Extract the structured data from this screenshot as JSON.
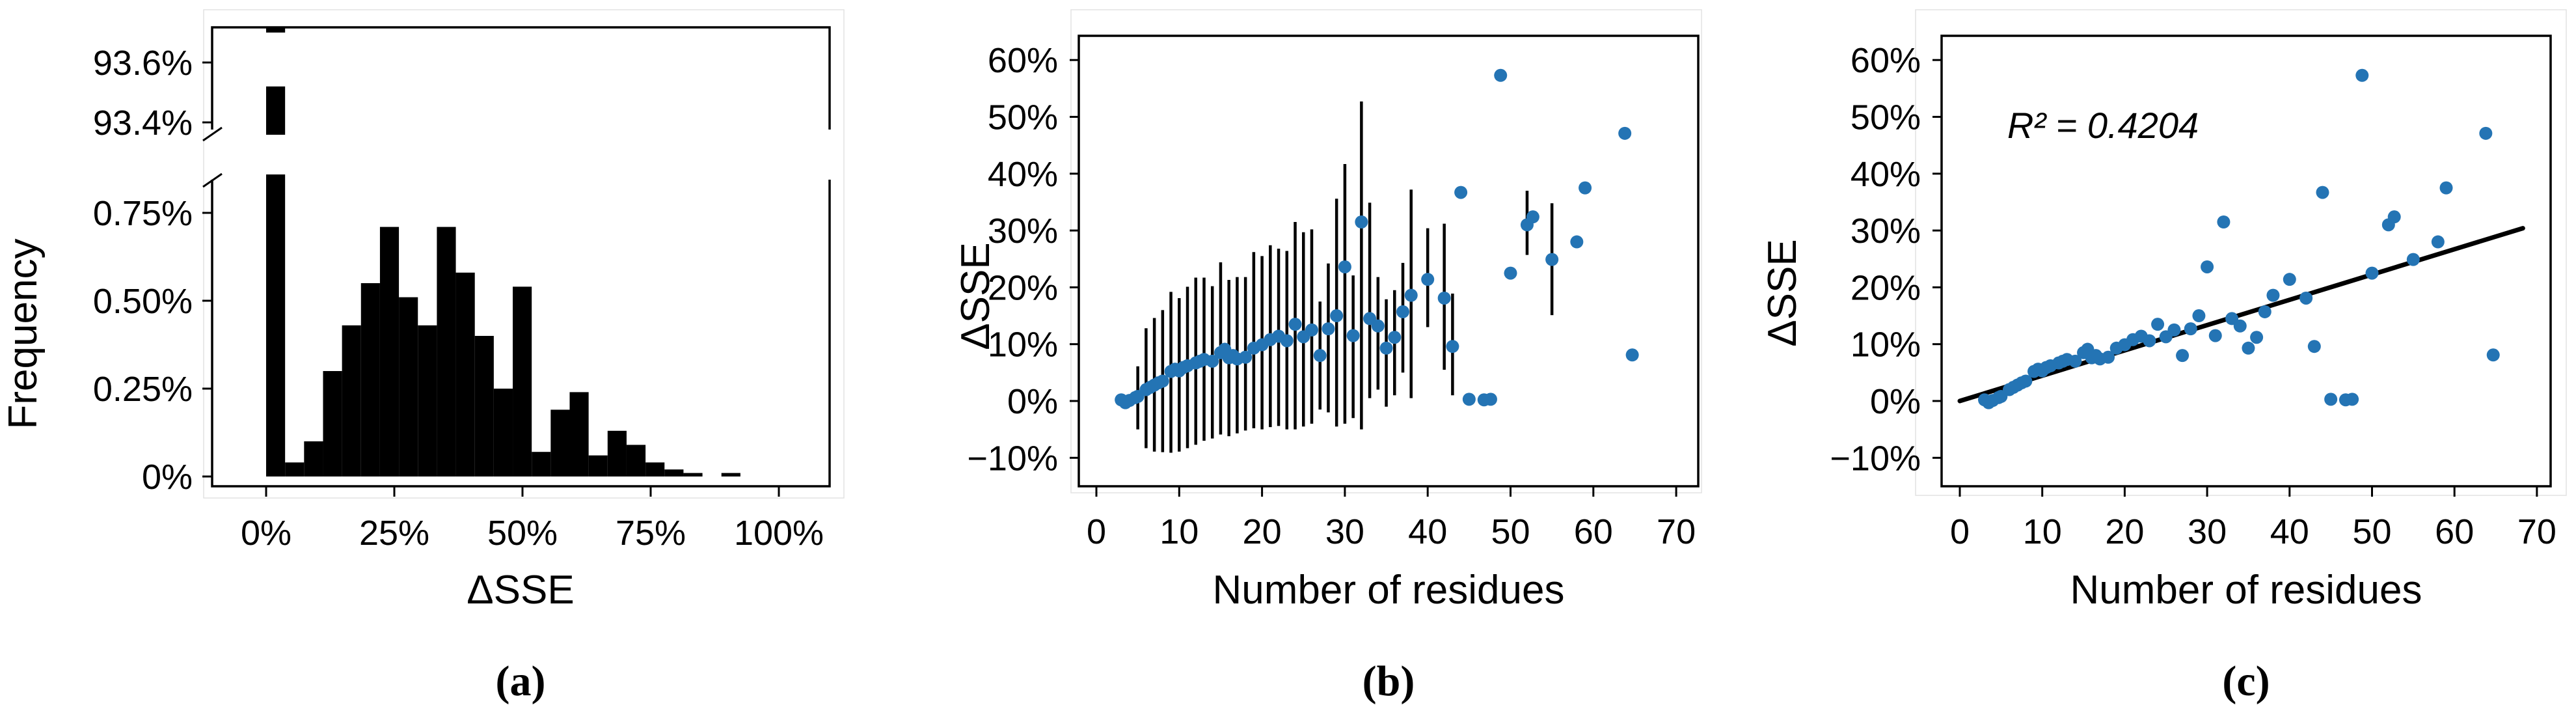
{
  "colors": {
    "dot_blue": "#2474b4",
    "bar_black": "#000000",
    "line_black": "#000000",
    "background": "#ffffff",
    "panel_seam_gray": "#e2e2e2"
  },
  "panels": {
    "a": {
      "caption": "(a)",
      "xlabel": "ΔSSE",
      "ylabel": "Frequency"
    },
    "b": {
      "caption": "(b)",
      "xlabel": "Number of residues",
      "ylabel": "ΔSSE"
    },
    "c": {
      "caption": "(c)",
      "xlabel": "Number of residues",
      "ylabel": "ΔSSE",
      "annotation": "R² = 0.4204",
      "r_squared": 0.4204
    }
  },
  "chart_data": [
    {
      "type": "bar",
      "panel": "a",
      "subtype": "histogram-broken-y-axis",
      "xlabel": "ΔSSE",
      "ylabel": "Frequency",
      "grid": false,
      "xticks": [
        {
          "v": 0,
          "label": "0%"
        },
        {
          "v": 25,
          "label": "25%"
        },
        {
          "v": 50,
          "label": "50%"
        },
        {
          "v": 75,
          "label": "75%"
        },
        {
          "v": 100,
          "label": "100%"
        }
      ],
      "upper_axis": {
        "ylim": [
          93.355,
          93.717
        ],
        "yticks": [
          {
            "v": 93.6,
            "label": "93.6%"
          },
          {
            "v": 93.4,
            "label": "93.4%"
          }
        ]
      },
      "lower_axis": {
        "ylim": [
          0,
          0.859
        ],
        "yticks": [
          {
            "v": 0.75,
            "label": "0.75%"
          },
          {
            "v": 0.5,
            "label": "0.50%"
          },
          {
            "v": 0.25,
            "label": "0.25%"
          },
          {
            "v": 0,
            "label": "0%"
          }
        ]
      },
      "bin_width": 3.7,
      "bars": [
        {
          "x": 0,
          "freq": 93.52
        },
        {
          "x": 3.7,
          "freq": 0.04
        },
        {
          "x": 7.4,
          "freq": 0.1
        },
        {
          "x": 11.1,
          "freq": 0.3
        },
        {
          "x": 14.8,
          "freq": 0.43
        },
        {
          "x": 18.5,
          "freq": 0.55
        },
        {
          "x": 22.2,
          "freq": 0.71
        },
        {
          "x": 25.9,
          "freq": 0.51
        },
        {
          "x": 29.6,
          "freq": 0.43
        },
        {
          "x": 33.3,
          "freq": 0.71
        },
        {
          "x": 37.0,
          "freq": 0.58
        },
        {
          "x": 40.7,
          "freq": 0.4
        },
        {
          "x": 44.4,
          "freq": 0.25
        },
        {
          "x": 48.1,
          "freq": 0.54
        },
        {
          "x": 51.8,
          "freq": 0.07
        },
        {
          "x": 55.5,
          "freq": 0.19
        },
        {
          "x": 59.2,
          "freq": 0.24
        },
        {
          "x": 62.9,
          "freq": 0.06
        },
        {
          "x": 66.6,
          "freq": 0.13
        },
        {
          "x": 70.3,
          "freq": 0.09
        },
        {
          "x": 74.0,
          "freq": 0.04
        },
        {
          "x": 77.7,
          "freq": 0.02
        },
        {
          "x": 81.4,
          "freq": 0.01
        },
        {
          "x": 88.8,
          "freq": 0.01
        }
      ]
    },
    {
      "type": "scatter",
      "panel": "b",
      "subtype": "scatter-with-errorbars",
      "xlabel": "Number of residues",
      "ylabel": "ΔSSE",
      "grid": false,
      "xlim": [
        -2.1,
        72.7
      ],
      "ylim": [
        -15.1,
        64.5
      ],
      "xticks": [
        {
          "v": 0,
          "label": "0"
        },
        {
          "v": 10,
          "label": "10"
        },
        {
          "v": 20,
          "label": "20"
        },
        {
          "v": 30,
          "label": "30"
        },
        {
          "v": 40,
          "label": "40"
        },
        {
          "v": 50,
          "label": "50"
        },
        {
          "v": 60,
          "label": "60"
        },
        {
          "v": 70,
          "label": "70"
        }
      ],
      "yticks": [
        {
          "v": 60,
          "label": "60%"
        },
        {
          "v": 50,
          "label": "50%"
        },
        {
          "v": 40,
          "label": "40%"
        },
        {
          "v": 30,
          "label": "30%"
        },
        {
          "v": 20,
          "label": "20%"
        },
        {
          "v": 10,
          "label": "10%"
        },
        {
          "v": 0,
          "label": "0%"
        },
        {
          "v": -10,
          "label": "−10%"
        }
      ],
      "points": [
        [
          3,
          0.2,
          null,
          null
        ],
        [
          3.5,
          -0.3,
          null,
          null
        ],
        [
          4,
          0.1,
          null,
          null
        ],
        [
          4.7,
          0.6,
          null,
          null
        ],
        [
          5,
          0.8,
          -5,
          6.1
        ],
        [
          6,
          2.0,
          -8.3,
          12.8
        ],
        [
          6.5,
          2.4,
          null,
          null
        ],
        [
          7,
          2.8,
          -8.9,
          14.6
        ],
        [
          7.5,
          3.2,
          null,
          null
        ],
        [
          8,
          3.5,
          -9,
          16
        ],
        [
          9,
          5.2,
          -9.1,
          19.2
        ],
        [
          9.5,
          5.6,
          null,
          null
        ],
        [
          10,
          5.3,
          -8.9,
          18.1
        ],
        [
          10.5,
          5.9,
          null,
          null
        ],
        [
          11,
          6.2,
          -8.3,
          20.1
        ],
        [
          12,
          6.7,
          -7.7,
          21.7
        ],
        [
          12.5,
          7.0,
          null,
          null
        ],
        [
          13,
          7.3,
          -7,
          21.7
        ],
        [
          14,
          7.0,
          -6.6,
          20.2
        ],
        [
          15,
          8.5,
          -5.9,
          24.4
        ],
        [
          15.5,
          9.1,
          null,
          null
        ],
        [
          16,
          7.6,
          -6.2,
          21.3
        ],
        [
          16.5,
          8.0,
          null,
          null
        ],
        [
          17,
          7.4,
          -5.7,
          21.8
        ],
        [
          18,
          7.7,
          -5.2,
          21.8
        ],
        [
          19,
          9.3,
          -4.8,
          26.2
        ],
        [
          20,
          9.9,
          -5,
          25.5
        ],
        [
          21,
          10.8,
          -4.6,
          27.4
        ],
        [
          22,
          11.4,
          -4.4,
          26.8
        ],
        [
          23,
          10.6,
          -5,
          26.4
        ],
        [
          24,
          13.5,
          -5,
          31.5
        ],
        [
          25,
          11.3,
          -4.5,
          29.7
        ],
        [
          26,
          12.5,
          -4,
          30.2
        ],
        [
          27,
          8.0,
          -1.5,
          17.5
        ],
        [
          28,
          12.7,
          -2,
          24.2
        ],
        [
          29,
          15.0,
          -4.5,
          35.6
        ],
        [
          30,
          23.6,
          -4,
          41.7
        ],
        [
          31,
          11.5,
          -3,
          22.1
        ],
        [
          32,
          31.5,
          -5,
          52.7
        ],
        [
          33,
          14.5,
          0.5,
          34.9
        ],
        [
          34,
          13.2,
          2,
          21.8
        ],
        [
          35,
          9.3,
          -1,
          17.9
        ],
        [
          36,
          11.2,
          1,
          19.5
        ],
        [
          37,
          15.7,
          5,
          24.3
        ],
        [
          38,
          18.6,
          0.5,
          37.2
        ],
        [
          40,
          21.4,
          13,
          30.4
        ],
        [
          42,
          18.1,
          5.5,
          31.2
        ],
        [
          43,
          9.6,
          1,
          18.9
        ],
        [
          44,
          36.7,
          null,
          null
        ],
        [
          45,
          0.3,
          null,
          null
        ],
        [
          46.8,
          0.2,
          null,
          null
        ],
        [
          47.6,
          0.3,
          null,
          null
        ],
        [
          48.8,
          57.3,
          null,
          null
        ],
        [
          50,
          22.5,
          null,
          null
        ],
        [
          52,
          31.0,
          25.7,
          37.0
        ],
        [
          52.7,
          32.4,
          null,
          null
        ],
        [
          55,
          24.9,
          15.1,
          34.8
        ],
        [
          58,
          28.0,
          null,
          null
        ],
        [
          59,
          37.5,
          null,
          null
        ],
        [
          63.8,
          47.1,
          null,
          null
        ],
        [
          64.7,
          8.1,
          null,
          null
        ]
      ]
    },
    {
      "type": "scatter",
      "panel": "c",
      "subtype": "scatter-with-linear-fit",
      "xlabel": "Number of residues",
      "ylabel": "ΔSSE",
      "grid": false,
      "annotation": "R² = 0.4204",
      "r_squared": 0.4204,
      "xlim": [
        -2.2,
        71.6
      ],
      "ylim": [
        -15.1,
        64.5
      ],
      "xticks": [
        {
          "v": 0,
          "label": "0"
        },
        {
          "v": 10,
          "label": "10"
        },
        {
          "v": 20,
          "label": "20"
        },
        {
          "v": 30,
          "label": "30"
        },
        {
          "v": 40,
          "label": "40"
        },
        {
          "v": 50,
          "label": "50"
        },
        {
          "v": 60,
          "label": "60"
        },
        {
          "v": 70,
          "label": "70"
        }
      ],
      "yticks": [
        {
          "v": 60,
          "label": "60%"
        },
        {
          "v": 50,
          "label": "50%"
        },
        {
          "v": 40,
          "label": "40%"
        },
        {
          "v": 30,
          "label": "30%"
        },
        {
          "v": 20,
          "label": "20%"
        },
        {
          "v": 10,
          "label": "10%"
        },
        {
          "v": 0,
          "label": "0%"
        },
        {
          "v": -10,
          "label": "−10%"
        }
      ],
      "fit_line": {
        "x1": 0,
        "y1": 0,
        "x2": 68.3,
        "y2": 30.4
      },
      "points": [
        [
          3,
          0.2
        ],
        [
          3.5,
          -0.3
        ],
        [
          4,
          0.1
        ],
        [
          4.7,
          0.6
        ],
        [
          5,
          0.8
        ],
        [
          6,
          2.0
        ],
        [
          6.5,
          2.4
        ],
        [
          7,
          2.8
        ],
        [
          7.5,
          3.2
        ],
        [
          8,
          3.5
        ],
        [
          9,
          5.2
        ],
        [
          9.5,
          5.6
        ],
        [
          10,
          5.3
        ],
        [
          10.5,
          5.9
        ],
        [
          11,
          6.2
        ],
        [
          12,
          6.7
        ],
        [
          12.5,
          7.0
        ],
        [
          13,
          7.3
        ],
        [
          14,
          7.0
        ],
        [
          15,
          8.5
        ],
        [
          15.5,
          9.1
        ],
        [
          16,
          7.6
        ],
        [
          16.5,
          8.0
        ],
        [
          17,
          7.4
        ],
        [
          18,
          7.7
        ],
        [
          19,
          9.3
        ],
        [
          20,
          9.9
        ],
        [
          21,
          10.8
        ],
        [
          22,
          11.4
        ],
        [
          23,
          10.6
        ],
        [
          24,
          13.5
        ],
        [
          25,
          11.3
        ],
        [
          26,
          12.5
        ],
        [
          27,
          8.0
        ],
        [
          28,
          12.7
        ],
        [
          29,
          15.0
        ],
        [
          30,
          23.6
        ],
        [
          31,
          11.5
        ],
        [
          32,
          31.5
        ],
        [
          33,
          14.5
        ],
        [
          34,
          13.2
        ],
        [
          35,
          9.3
        ],
        [
          36,
          11.2
        ],
        [
          37,
          15.7
        ],
        [
          38,
          18.6
        ],
        [
          40,
          21.4
        ],
        [
          42,
          18.1
        ],
        [
          43,
          9.6
        ],
        [
          44,
          36.7
        ],
        [
          45,
          0.3
        ],
        [
          46.8,
          0.2
        ],
        [
          47.6,
          0.3
        ],
        [
          48.8,
          57.3
        ],
        [
          50,
          22.5
        ],
        [
          52,
          31.0
        ],
        [
          52.7,
          32.4
        ],
        [
          55,
          24.9
        ],
        [
          58,
          28.0
        ],
        [
          59,
          37.5
        ],
        [
          63.8,
          47.1
        ],
        [
          64.7,
          8.1
        ]
      ]
    }
  ]
}
